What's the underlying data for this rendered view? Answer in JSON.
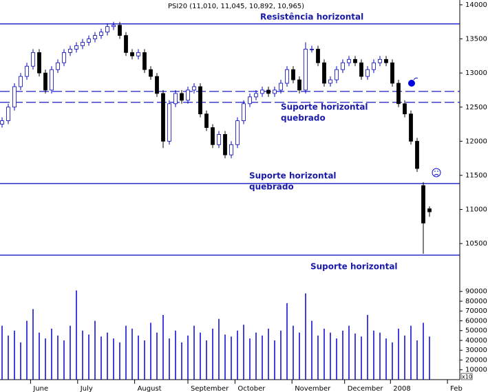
{
  "chart_data": [
    {
      "type": "candlestick",
      "title": "PSI20 (11,010, 11,045, 10,892, 10,965)",
      "open": [
        12250,
        12300,
        12500,
        12800,
        12950,
        13100,
        13300,
        13000,
        12750,
        13050,
        13150,
        13300,
        13350,
        13400,
        13450,
        13500,
        13550,
        13600,
        13680,
        13700,
        13550,
        13300,
        13250,
        13300,
        13050,
        12950,
        12700,
        12000,
        12550,
        12700,
        12600,
        12750,
        12800,
        12400,
        12200,
        11950,
        12100,
        11800,
        11950,
        12300,
        12550,
        12650,
        12700,
        12750,
        12700,
        12750,
        12850,
        13050,
        12900,
        12750,
        13350,
        13350,
        13150,
        12850,
        12900,
        13050,
        13150,
        13200,
        13150,
        12950,
        13050,
        13150,
        13200,
        13150,
        12850,
        12550,
        12400,
        12000,
        11350,
        11010
      ],
      "high": [
        12350,
        12550,
        12850,
        13000,
        13150,
        13350,
        13350,
        13050,
        13100,
        13200,
        13350,
        13400,
        13450,
        13500,
        13550,
        13600,
        13650,
        13730,
        13750,
        13750,
        13600,
        13350,
        13350,
        13350,
        13100,
        13000,
        12750,
        12600,
        12750,
        12750,
        12800,
        12850,
        12850,
        12450,
        12250,
        12150,
        12150,
        12000,
        12350,
        12600,
        12700,
        12750,
        12800,
        12800,
        12800,
        12900,
        13100,
        13100,
        12950,
        13450,
        13400,
        13400,
        13200,
        12950,
        13100,
        13200,
        13250,
        13250,
        13200,
        13100,
        13200,
        13250,
        13250,
        13200,
        12900,
        12600,
        12450,
        12050,
        11400,
        11045
      ],
      "low": [
        12200,
        12250,
        12450,
        12750,
        12900,
        13050,
        12950,
        12700,
        12700,
        13000,
        13100,
        13250,
        13300,
        13350,
        13400,
        13450,
        13500,
        13550,
        13630,
        13500,
        13250,
        13200,
        13200,
        13000,
        12900,
        12650,
        11900,
        11950,
        12500,
        12550,
        12550,
        12700,
        12350,
        12150,
        11900,
        11900,
        11750,
        11750,
        11900,
        12250,
        12500,
        12600,
        12650,
        12650,
        12650,
        12700,
        12800,
        12850,
        12700,
        12700,
        13300,
        13100,
        12800,
        12800,
        12850,
        13000,
        13100,
        13100,
        12900,
        12900,
        13000,
        13100,
        13100,
        12800,
        12500,
        12350,
        11950,
        11550,
        10350,
        10892
      ],
      "close": [
        12300,
        12500,
        12800,
        12950,
        13100,
        13300,
        13000,
        12750,
        13050,
        13150,
        13300,
        13350,
        13400,
        13450,
        13500,
        13550,
        13600,
        13680,
        13700,
        13550,
        13300,
        13250,
        13300,
        13050,
        12950,
        12700,
        12000,
        12550,
        12700,
        12600,
        12750,
        12800,
        12400,
        12200,
        11950,
        12100,
        11800,
        11950,
        12300,
        12550,
        12650,
        12700,
        12750,
        12700,
        12750,
        12850,
        13050,
        12900,
        12750,
        13350,
        13350,
        13150,
        12850,
        12900,
        13050,
        13150,
        13200,
        13150,
        12950,
        13050,
        13150,
        13200,
        13150,
        12850,
        12550,
        12400,
        12000,
        11600,
        10800,
        10965
      ],
      "up_color": "#ffffff",
      "down_color": "#000000",
      "outline_color": "#0000c0",
      "xlim": [
        -0.3333,
        75
      ],
      "xticks": [
        {
          "value": 4.6,
          "label": "June"
        },
        {
          "value": 12.2,
          "label": "July"
        },
        {
          "value": 21.4,
          "label": "August"
        },
        {
          "value": 30,
          "label": "September"
        },
        {
          "value": 37.6,
          "label": "October"
        },
        {
          "value": 46.8,
          "label": "November"
        },
        {
          "value": 55.3,
          "label": "December"
        },
        {
          "value": 62.7,
          "label": "2008"
        },
        {
          "value": 71.9,
          "label": "Feb"
        }
      ],
      "ylim": [
        10300,
        14070
      ],
      "yticks": [
        10500,
        11000,
        11500,
        12000,
        12500,
        13000,
        13500,
        14000
      ],
      "reference_lines": [
        {
          "value": 13720,
          "style": "solid"
        },
        {
          "value": 12730,
          "style": "dashed"
        },
        {
          "value": 12570,
          "style": "dashed"
        },
        {
          "value": 11380,
          "style": "solid"
        },
        {
          "value": 10330,
          "style": "solid"
        }
      ],
      "line_color": "#0000c0",
      "annotations": [
        {
          "text": [
            "Resistência horizontal"
          ]
        },
        {
          "text": [
            "Suporte horizontal",
            "quebrado"
          ]
        },
        {
          "text": [
            "Suporte horizontal",
            "quebrado"
          ]
        },
        {
          "text": [
            "Suporte horizontal"
          ]
        }
      ]
    },
    {
      "type": "bar",
      "values": [
        55000,
        45000,
        50000,
        38000,
        60000,
        72000,
        48000,
        42000,
        52000,
        45000,
        40000,
        55000,
        91000,
        50000,
        46000,
        60000,
        44000,
        48000,
        42000,
        38000,
        55000,
        52000,
        45000,
        40000,
        58000,
        48000,
        66000,
        42000,
        50000,
        38000,
        45000,
        55000,
        48000,
        40000,
        52000,
        62000,
        46000,
        44000,
        50000,
        56000,
        42000,
        48000,
        45000,
        52000,
        40000,
        50000,
        78000,
        55000,
        48000,
        88000,
        60000,
        45000,
        52000,
        48000,
        42000,
        50000,
        55000,
        47000,
        44000,
        66000,
        50000,
        48000,
        42000,
        38000,
        52000,
        45000,
        55000,
        40000,
        58000,
        44000
      ],
      "color": "#0000d0",
      "ylim": [
        0,
        122800
      ],
      "yticks": [
        10000,
        20000,
        30000,
        40000,
        50000,
        60000,
        70000,
        80000,
        90000
      ],
      "unit_label": "x10"
    }
  ]
}
